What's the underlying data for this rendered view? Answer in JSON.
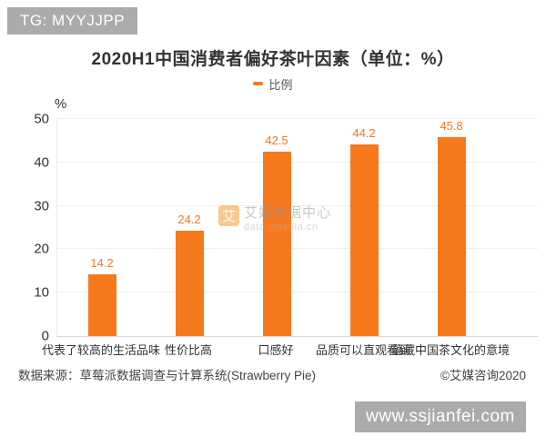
{
  "badge": {
    "text": "TG: MYYJJPP"
  },
  "title": "2020H1中国消费者偏好茶叶因素（单位：%）",
  "legend": {
    "label": "比例"
  },
  "chart_data": {
    "type": "bar",
    "title": "2020H1中国消费者偏好茶叶因素（单位：%）",
    "series_name": "比例",
    "categories": [
      "代表了较高的生活品味",
      "性价比高",
      "口感好",
      "品质可以直观看到",
      "蕴藏中国茶文化的意境"
    ],
    "values": [
      14.2,
      24.2,
      42.5,
      44.2,
      45.8
    ],
    "xlabel": "",
    "ylabel": "%",
    "ylim": [
      0,
      50
    ],
    "yticks": [
      0,
      10,
      20,
      30,
      40,
      50
    ],
    "grid": true,
    "legend_position": "top-center",
    "bar_color": "#F7791E"
  },
  "watermark": {
    "logo_char": "艾",
    "line1": "艾媒数据中心",
    "line2": "data.iimedia.cn"
  },
  "footer": {
    "source": "数据来源：草莓派数据调查与计算系统(Strawberry Pie)",
    "copyright": "©艾媒咨询2020"
  },
  "url_bar": {
    "text": "www.ssjianfei.com"
  },
  "colors": {
    "accent": "#F7791E",
    "overlay_gray": "#ABABAB",
    "watermark_logo": "#F7921E"
  }
}
